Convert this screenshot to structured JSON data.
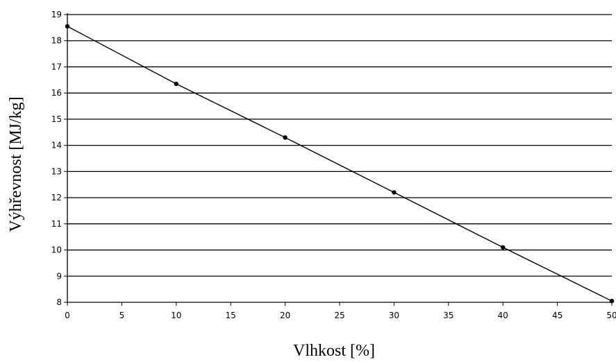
{
  "chart_data": {
    "type": "line",
    "title": "",
    "xlabel": "Vlhkost [%]",
    "ylabel": "Výhřevnost [MJ/kg]",
    "xlim": [
      0,
      50
    ],
    "ylim": [
      8,
      19
    ],
    "x_ticks": [
      0,
      5,
      10,
      15,
      20,
      25,
      30,
      35,
      40,
      45,
      50
    ],
    "y_ticks": [
      8,
      9,
      10,
      11,
      12,
      13,
      14,
      15,
      16,
      17,
      18,
      19
    ],
    "grid": "horizontal",
    "legend": "none",
    "series": [
      {
        "x": [
          0,
          10,
          20,
          30,
          40,
          50
        ],
        "y": [
          18.55,
          16.35,
          14.3,
          12.2,
          10.1,
          8.05
        ],
        "line_color": "#000000",
        "marker_color": "#000000"
      }
    ]
  }
}
